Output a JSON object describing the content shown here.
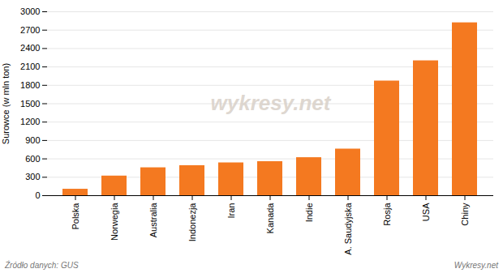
{
  "chart_data": {
    "type": "bar",
    "categories": [
      "Polska",
      "Norwegia",
      "Australia",
      "Indonezja",
      "Iran",
      "Kanada",
      "Indie",
      "A. Saudyjska",
      "Rosja",
      "USA",
      "Chiny"
    ],
    "values": [
      105,
      320,
      455,
      490,
      535,
      555,
      620,
      760,
      1870,
      2200,
      2820
    ],
    "color": "#f47920",
    "y_label": "Surowce (w mln ton)",
    "ylim": [
      0,
      3000
    ],
    "yticks": [
      0,
      300,
      600,
      900,
      1200,
      1500,
      1800,
      2100,
      2400,
      2700,
      3000
    ],
    "grid": true,
    "annotations": [
      "wykresy.net",
      "Źródło danych:  GUS",
      "Wykresy.net"
    ]
  }
}
